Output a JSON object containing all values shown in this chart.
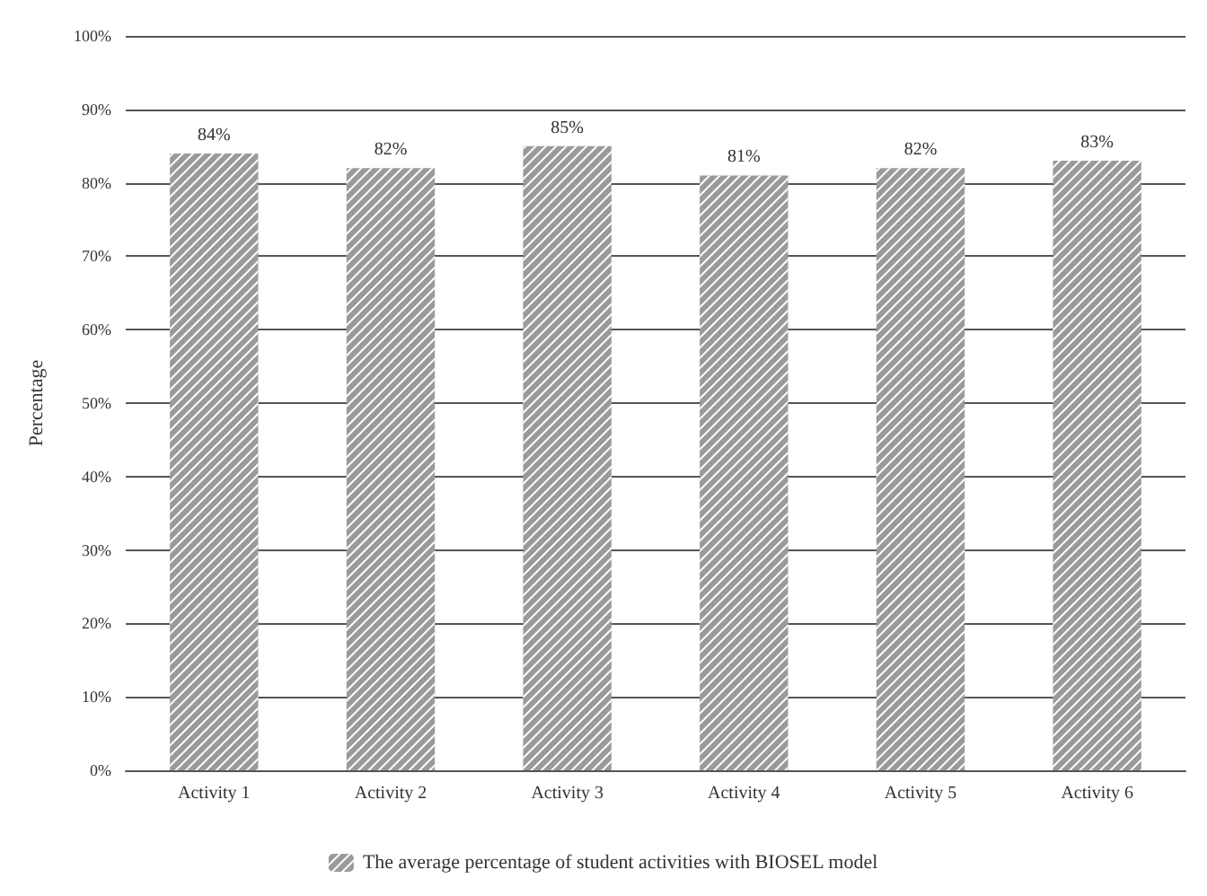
{
  "chart_data": {
    "type": "bar",
    "ylabel": "Percentage",
    "categories": [
      "Activity 1",
      "Activity 2",
      "Activity 3",
      "Activity 4",
      "Activity 5",
      "Activity 6"
    ],
    "series": [
      {
        "name": "The average percentage of student activities with BIOSEL model",
        "color": "#9a9a9a",
        "values": [
          84,
          82,
          85,
          81,
          82,
          83
        ],
        "value_labels": [
          "84%",
          "82%",
          "85%",
          "81%",
          "82%",
          "83%"
        ]
      }
    ],
    "ylim": [
      0,
      100
    ],
    "yticks": [
      {
        "value": 0,
        "label": "0%"
      },
      {
        "value": 10,
        "label": "10%"
      },
      {
        "value": 20,
        "label": "20%"
      },
      {
        "value": 30,
        "label": "30%"
      },
      {
        "value": 40,
        "label": "40%"
      },
      {
        "value": 50,
        "label": "50%"
      },
      {
        "value": 60,
        "label": "60%"
      },
      {
        "value": 70,
        "label": "70%"
      },
      {
        "value": 80,
        "label": "80%"
      },
      {
        "value": 90,
        "label": "90%"
      },
      {
        "value": 100,
        "label": "100%"
      }
    ],
    "grid": "y",
    "legend": "bottom"
  }
}
